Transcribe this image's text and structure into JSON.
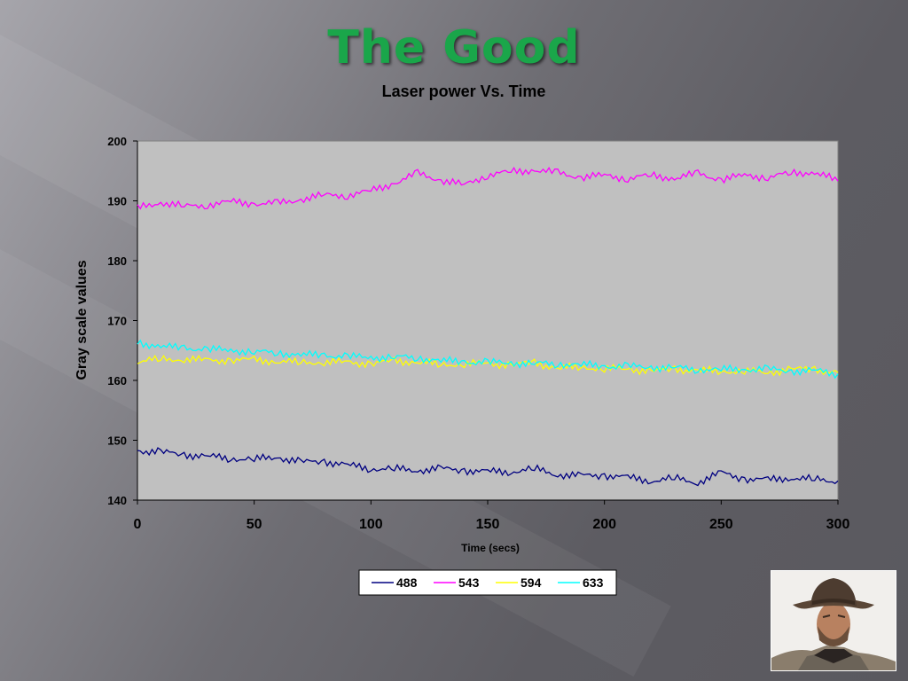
{
  "slide": {
    "title": "The Good"
  },
  "photo": {
    "subject": "man-in-cowboy-hat-photo"
  },
  "colors": {
    "title": "#1aa64a",
    "plot_bg": "#c0c0c0"
  },
  "chart_data": {
    "type": "line",
    "title": "Laser power Vs. Time",
    "xlabel": "Time (secs)",
    "ylabel": "Gray scale values",
    "xlim": [
      0,
      300
    ],
    "ylim": [
      140,
      200
    ],
    "xticks": [
      0,
      50,
      100,
      150,
      200,
      250,
      300
    ],
    "yticks": [
      140,
      150,
      160,
      170,
      180,
      190,
      200
    ],
    "grid": false,
    "legend_position": "bottom",
    "x": [
      0,
      10,
      20,
      30,
      40,
      50,
      60,
      70,
      80,
      90,
      100,
      110,
      120,
      130,
      140,
      150,
      160,
      170,
      180,
      190,
      200,
      210,
      220,
      230,
      240,
      250,
      260,
      270,
      280,
      290,
      300
    ],
    "series": [
      {
        "name": "488",
        "color": "#000080",
        "values": [
          148.3,
          148.0,
          147.6,
          147.3,
          147.0,
          146.8,
          147.2,
          146.3,
          146.5,
          145.8,
          145.3,
          145.2,
          145.0,
          145.2,
          145.0,
          144.7,
          144.8,
          145.2,
          144.3,
          144.0,
          144.2,
          143.7,
          143.3,
          143.6,
          143.0,
          144.5,
          143.6,
          143.3,
          143.8,
          143.4,
          143.2
        ]
      },
      {
        "name": "543",
        "color": "#ff00ff",
        "values": [
          188.7,
          189.8,
          189.0,
          189.4,
          189.8,
          189.6,
          189.5,
          190.3,
          190.9,
          191.0,
          191.6,
          193.0,
          194.5,
          193.5,
          192.6,
          194.4,
          194.8,
          195.2,
          194.6,
          194.0,
          194.2,
          193.8,
          194.2,
          193.8,
          194.5,
          193.6,
          194.2,
          194.0,
          194.6,
          194.8,
          193.3
        ]
      },
      {
        "name": "594",
        "color": "#ffff00",
        "values": [
          163.2,
          163.5,
          163.6,
          163.3,
          163.4,
          163.4,
          163.2,
          163.0,
          163.1,
          163.0,
          162.8,
          163.2,
          163.1,
          162.6,
          162.8,
          162.8,
          162.6,
          162.9,
          162.1,
          162.2,
          162.0,
          161.9,
          161.6,
          161.8,
          161.7,
          161.5,
          161.6,
          161.3,
          161.9,
          161.8,
          161.3
        ]
      },
      {
        "name": "633",
        "color": "#00ffff",
        "values": [
          166.3,
          165.7,
          165.4,
          165.2,
          165.0,
          164.8,
          164.6,
          164.3,
          164.2,
          164.0,
          163.8,
          163.9,
          163.8,
          163.3,
          163.1,
          163.0,
          162.9,
          162.8,
          162.8,
          162.6,
          162.4,
          162.3,
          162.2,
          162.1,
          161.9,
          161.8,
          161.9,
          161.8,
          161.6,
          161.6,
          161.1
        ]
      }
    ]
  }
}
